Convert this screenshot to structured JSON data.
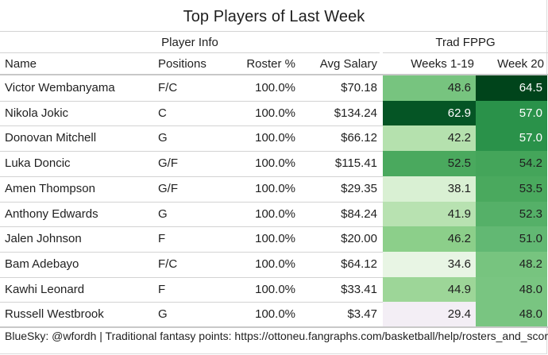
{
  "title": "Top Players of Last Week",
  "groups": {
    "player_info": "Player Info",
    "trad_fppg": "Trad FPPG"
  },
  "columns": {
    "name": "Name",
    "positions": "Positions",
    "roster_pct": "Roster %",
    "avg_salary": "Avg Salary",
    "weeks_1_19": "Weeks 1-19",
    "week_20": "Week 20"
  },
  "rows": [
    {
      "name": "Victor Wembanyama",
      "positions": "F/C",
      "roster_pct": "100.0%",
      "avg_salary": "$70.18",
      "weeks_1_19": "48.6",
      "week_20": "64.5",
      "weeks_color": "#77c47f",
      "week20_color": "#00441b",
      "weeks_text": "#1f1f1f",
      "week20_text": "#ffffff"
    },
    {
      "name": "Nikola Jokic",
      "positions": "C",
      "roster_pct": "100.0%",
      "avg_salary": "$134.24",
      "weeks_1_19": "62.9",
      "week_20": "57.0",
      "weeks_color": "#055525",
      "week20_color": "#2a924a",
      "weeks_text": "#ffffff",
      "week20_text": "#ffffff"
    },
    {
      "name": "Donovan Mitchell",
      "positions": "G",
      "roster_pct": "100.0%",
      "avg_salary": "$66.12",
      "weeks_1_19": "42.2",
      "week_20": "57.0",
      "weeks_color": "#b5e1ae",
      "week20_color": "#2a924a",
      "weeks_text": "#1f1f1f",
      "week20_text": "#ffffff"
    },
    {
      "name": "Luka Doncic",
      "positions": "G/F",
      "roster_pct": "100.0%",
      "avg_salary": "$115.41",
      "weeks_1_19": "52.5",
      "week_20": "54.2",
      "weeks_color": "#4aa95e",
      "week20_color": "#44a55a",
      "weeks_text": "#1f1f1f",
      "week20_text": "#1f1f1f"
    },
    {
      "name": "Amen Thompson",
      "positions": "G/F",
      "roster_pct": "100.0%",
      "avg_salary": "$29.35",
      "weeks_1_19": "38.1",
      "week_20": "53.5",
      "weeks_color": "#d9f0d3",
      "week20_color": "#4aa95e",
      "weeks_text": "#1f1f1f",
      "week20_text": "#1f1f1f"
    },
    {
      "name": "Anthony Edwards",
      "positions": "G",
      "roster_pct": "100.0%",
      "avg_salary": "$84.24",
      "weeks_1_19": "41.9",
      "week_20": "52.3",
      "weeks_color": "#b8e2b1",
      "week20_color": "#55b068",
      "weeks_text": "#1f1f1f",
      "week20_text": "#1f1f1f"
    },
    {
      "name": "Jalen Johnson",
      "positions": "F",
      "roster_pct": "100.0%",
      "avg_salary": "$20.00",
      "weeks_1_19": "46.2",
      "week_20": "51.0",
      "weeks_color": "#8ccf8a",
      "week20_color": "#62b873",
      "weeks_text": "#1f1f1f",
      "week20_text": "#1f1f1f"
    },
    {
      "name": "Bam Adebayo",
      "positions": "F/C",
      "roster_pct": "100.0%",
      "avg_salary": "$64.12",
      "weeks_1_19": "34.6",
      "week_20": "48.2",
      "weeks_color": "#e8f5e4",
      "week20_color": "#77c47f",
      "weeks_text": "#1f1f1f",
      "week20_text": "#1f1f1f"
    },
    {
      "name": "Kawhi Leonard",
      "positions": "F",
      "roster_pct": "100.0%",
      "avg_salary": "$33.41",
      "weeks_1_19": "44.9",
      "week_20": "48.0",
      "weeks_color": "#9dd698",
      "week20_color": "#79c581",
      "weeks_text": "#1f1f1f",
      "week20_text": "#1f1f1f"
    },
    {
      "name": "Russell Westbrook",
      "positions": "G",
      "roster_pct": "100.0%",
      "avg_salary": "$3.47",
      "weeks_1_19": "29.4",
      "week_20": "48.0",
      "weeks_color": "#f3eef5",
      "week20_color": "#79c581",
      "weeks_text": "#1f1f1f",
      "week20_text": "#1f1f1f"
    }
  ],
  "footer": "BlueSky: @wfordh | Traditional fantasy points: https://ottoneu.fangraphs.com/basketball/help/rosters_and_scoring"
}
